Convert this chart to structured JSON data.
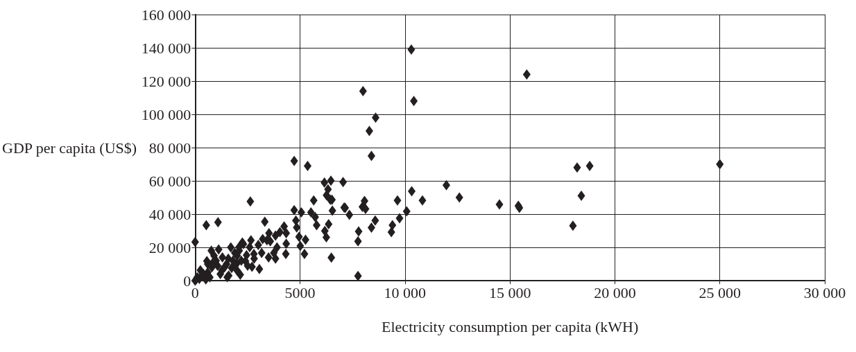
{
  "chart_data": {
    "type": "scatter",
    "xlabel": "Electricity consumption per capita (kWH)",
    "ylabel": "GDP per capita (US$)",
    "xlim": [
      0,
      30000
    ],
    "ylim": [
      0,
      160000
    ],
    "xticks": [
      0,
      5000,
      {
        "value": 10000,
        "label": "10 000"
      },
      {
        "value": 15000,
        "label": "15 000"
      },
      {
        "value": 20000,
        "label": "20 000"
      },
      {
        "value": 25000,
        "label": "25 000"
      },
      {
        "value": 30000,
        "label": "30 000"
      }
    ],
    "yticks": [
      0,
      {
        "value": 20000,
        "label": "20 000"
      },
      {
        "value": 40000,
        "label": "40 000"
      },
      {
        "value": 60000,
        "label": "60 000"
      },
      {
        "value": 80000,
        "label": "80 000"
      },
      {
        "value": 100000,
        "label": "100 000"
      },
      {
        "value": 120000,
        "label": "120 000"
      },
      {
        "value": 140000,
        "label": "140 000"
      },
      {
        "value": 160000,
        "label": "160 000"
      }
    ],
    "grid": true,
    "marker": "diamond",
    "series": [
      {
        "color": "#231f20",
        "x": [
          0,
          530,
          1090,
          2630,
          3320,
          4240,
          4720,
          5060,
          4800,
          4840,
          4950,
          5010,
          5210,
          5260,
          6160,
          6470,
          7050,
          6330,
          6260,
          6440,
          5650,
          5520,
          5720,
          5790,
          6540,
          7100,
          6360,
          6180,
          6250,
          6490,
          4320,
          3830,
          3750,
          4340,
          4340,
          4040,
          3830,
          3520,
          3420,
          3580,
          3220,
          2660,
          2600,
          3010,
          3170,
          3060,
          2710,
          2250,
          2090,
          1890,
          1580,
          1740,
          1530,
          2150,
          770,
          1120,
          560,
          820,
          250,
          50,
          510,
          1070,
          1280,
          1990,
          2400,
          2450,
          2810,
          6520,
          7150,
          7350,
          7970,
          8070,
          8120,
          8580,
          8400,
          7790,
          7760,
          7760,
          9400,
          9350,
          9640,
          9740,
          10080,
          10320,
          10830,
          11970,
          12590,
          14500,
          15450,
          10300,
          10420,
          8000,
          8600,
          8300,
          8400,
          4720,
          5360,
          15800,
          18200,
          18800,
          25000,
          18400,
          15400,
          18000,
          0,
          100,
          300,
          600,
          800,
          1000,
          1300,
          1500,
          1800,
          2000,
          2100,
          1700,
          900,
          400,
          1200,
          1600,
          2000,
          2200,
          2500,
          200,
          700,
          1400,
          1900,
          3500,
          3900,
          2800,
          2300,
          600
        ],
        "values": [
          23200,
          33300,
          35100,
          47600,
          35400,
          32600,
          42400,
          41000,
          36100,
          32000,
          26400,
          20800,
          16000,
          24600,
          59000,
          60100,
          59300,
          54900,
          51400,
          48600,
          48200,
          41000,
          38200,
          33300,
          42100,
          44000,
          34000,
          29900,
          26000,
          13900,
          16000,
          13200,
          16700,
          22200,
          28500,
          29200,
          27100,
          28500,
          24300,
          23600,
          25000,
          24300,
          20100,
          21500,
          16700,
          7000,
          8300,
          22900,
          20100,
          16700,
          13200,
          7600,
          2100,
          3500,
          18000,
          18800,
          11800,
          10400,
          6300,
          700,
          700,
          9000,
          6300,
          10400,
          11800,
          15300,
          13200,
          48600,
          43700,
          39600,
          44400,
          47900,
          43100,
          36100,
          31900,
          29600,
          23600,
          2800,
          33300,
          29200,
          48200,
          37500,
          41700,
          53800,
          48200,
          57400,
          50000,
          45800,
          43800,
          139000,
          108000,
          114000,
          98000,
          90000,
          75000,
          72000,
          69000,
          124000,
          68000,
          69000,
          70000,
          51000,
          45000,
          33000,
          0,
          2000,
          3000,
          5000,
          8000,
          12000,
          14000,
          10000,
          12000,
          15000,
          18000,
          20000,
          15000,
          4000,
          4000,
          3000,
          6000,
          12000,
          9000,
          1000,
          2000,
          8000,
          9000,
          14000,
          20000,
          16000,
          22000,
          10000
        ]
      }
    ]
  }
}
